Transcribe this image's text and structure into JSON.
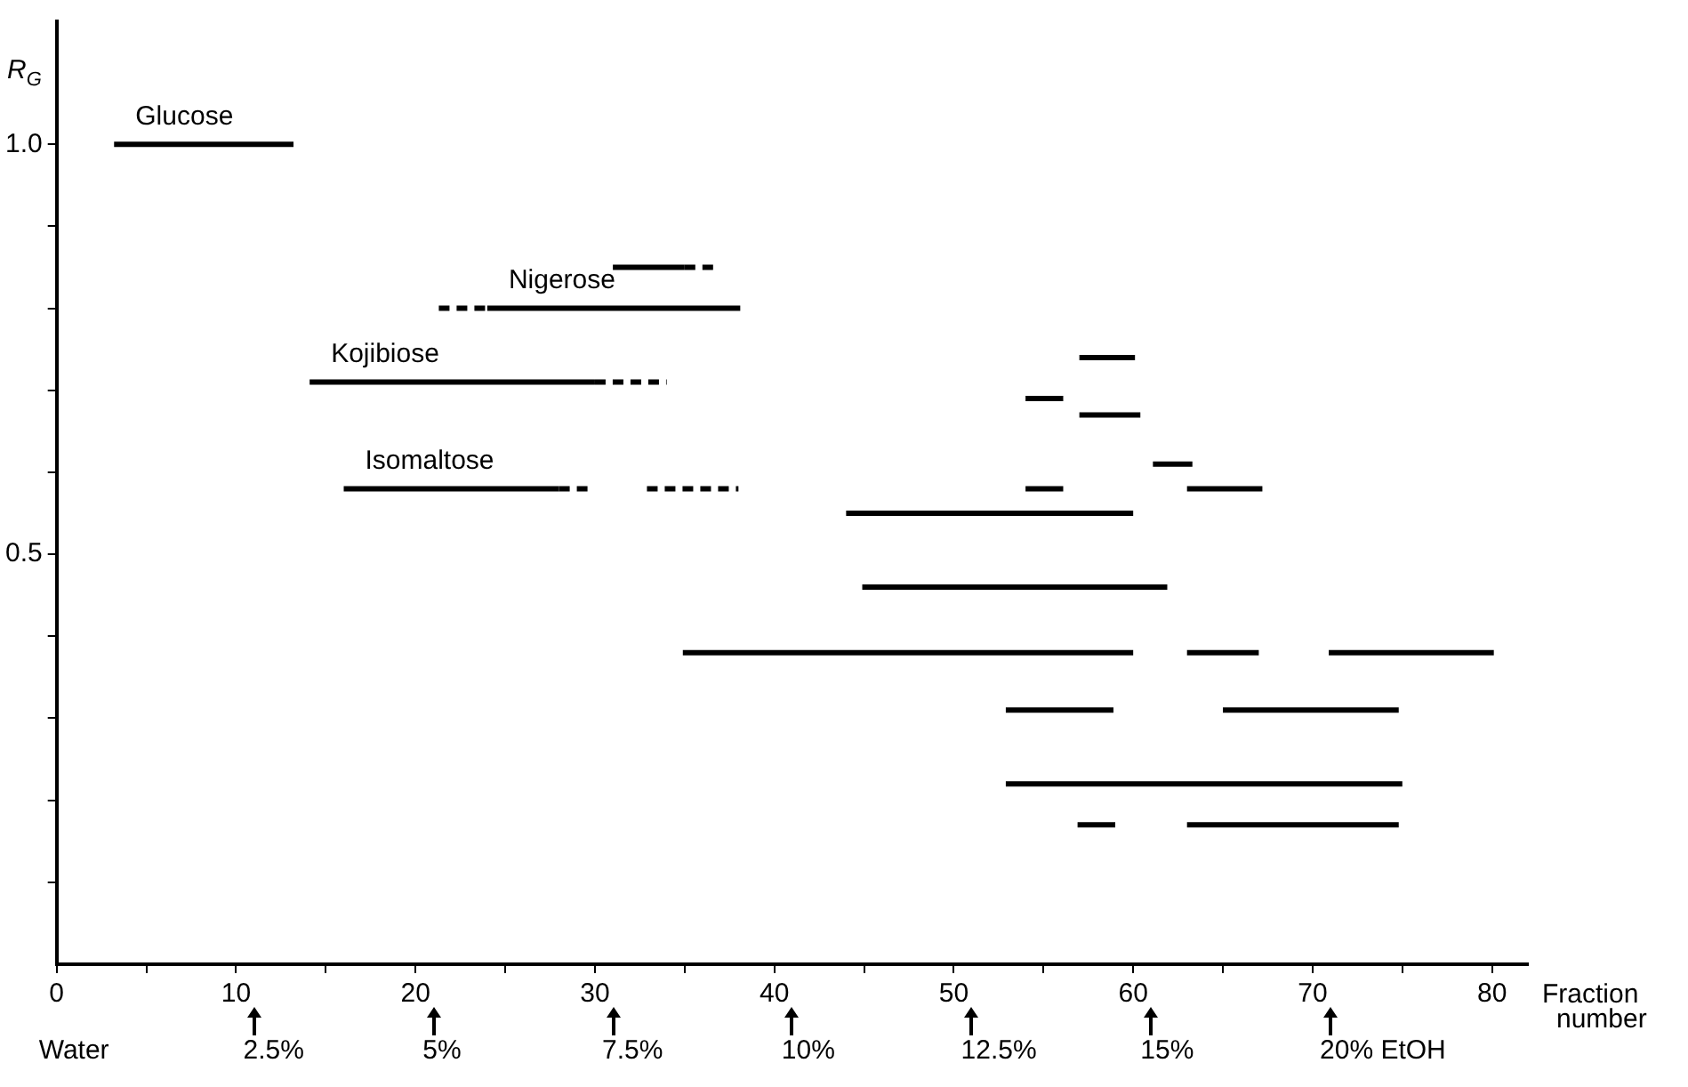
{
  "chart_data": {
    "type": "line",
    "xlabel": "Fraction number",
    "ylabel": "R$_{G}$",
    "xlim": [
      0,
      82
    ],
    "ylim": [
      0,
      1.15
    ],
    "xticks": [
      0,
      {
        "value": 5,
        "label": null
      },
      10,
      {
        "value": 15,
        "label": null
      },
      20,
      {
        "value": 25,
        "label": null
      },
      30,
      {
        "value": 35,
        "label": null
      },
      40,
      {
        "value": 45,
        "label": null
      },
      50,
      {
        "value": 55,
        "label": null
      },
      60,
      {
        "value": 65,
        "label": null
      },
      70,
      {
        "value": 75,
        "label": null
      },
      80
    ],
    "yticks": [
      {
        "value": 0.1,
        "label": null
      },
      {
        "value": 0.2,
        "label": null
      },
      {
        "value": 0.3,
        "label": null
      },
      {
        "value": 0.4,
        "label": null
      },
      {
        "value": 0.5,
        "label": "0.5"
      },
      {
        "value": 0.6,
        "label": null
      },
      {
        "value": 0.7,
        "label": null
      },
      {
        "value": 0.8,
        "label": null
      },
      {
        "value": 0.9,
        "label": null
      },
      {
        "value": 1.0,
        "label": "1.0"
      }
    ],
    "grid": false,
    "legend": false,
    "marker": "none",
    "series": [
      {
        "name": "Glucose",
        "color": "#000000",
        "x": [
          3.2,
          13.2
        ],
        "values": [
          1.0,
          1.0
        ],
        "line_style": "solid"
      },
      {
        "color": "#000000",
        "x": [
          31,
          35
        ],
        "values": [
          0.85,
          0.85
        ],
        "line_style": "solid"
      },
      {
        "color": "#000000",
        "x": [
          35,
          36.7
        ],
        "values": [
          0.85,
          0.85
        ],
        "line_style": "dashed"
      },
      {
        "color": "#000000",
        "x": [
          21.3,
          24
        ],
        "values": [
          0.8,
          0.8
        ],
        "line_style": "dashed"
      },
      {
        "name": "Nigerose",
        "color": "#000000",
        "x": [
          24,
          38.1
        ],
        "values": [
          0.8,
          0.8
        ],
        "line_style": "solid"
      },
      {
        "name": "Kojibiose",
        "color": "#000000",
        "x": [
          14.1,
          30
        ],
        "values": [
          0.71,
          0.71
        ],
        "line_style": "solid"
      },
      {
        "color": "#000000",
        "x": [
          30,
          34
        ],
        "values": [
          0.71,
          0.71
        ],
        "line_style": "dashed"
      },
      {
        "name": "Isomaltose",
        "color": "#000000",
        "x": [
          16,
          28
        ],
        "values": [
          0.58,
          0.58
        ],
        "line_style": "solid"
      },
      {
        "color": "#000000",
        "x": [
          28,
          29.9
        ],
        "values": [
          0.58,
          0.58
        ],
        "line_style": "dashed"
      },
      {
        "color": "#000000",
        "x": [
          32.9,
          38
        ],
        "values": [
          0.58,
          0.58
        ],
        "line_style": "dashed"
      },
      {
        "color": "#000000",
        "x": [
          57,
          60.1
        ],
        "values": [
          0.74,
          0.74
        ],
        "line_style": "solid"
      },
      {
        "color": "#000000",
        "x": [
          54,
          56.1
        ],
        "values": [
          0.69,
          0.69
        ],
        "line_style": "solid"
      },
      {
        "color": "#000000",
        "x": [
          57,
          60.4
        ],
        "values": [
          0.67,
          0.67
        ],
        "line_style": "solid"
      },
      {
        "color": "#000000",
        "x": [
          61.1,
          63.3
        ],
        "values": [
          0.61,
          0.61
        ],
        "line_style": "solid"
      },
      {
        "color": "#000000",
        "x": [
          54,
          56.1
        ],
        "values": [
          0.58,
          0.58
        ],
        "line_style": "solid"
      },
      {
        "color": "#000000",
        "x": [
          63,
          67.2
        ],
        "values": [
          0.58,
          0.58
        ],
        "line_style": "solid"
      },
      {
        "color": "#000000",
        "x": [
          44,
          60
        ],
        "values": [
          0.55,
          0.55
        ],
        "line_style": "solid"
      },
      {
        "color": "#000000",
        "x": [
          44.9,
          61.9
        ],
        "values": [
          0.46,
          0.46
        ],
        "line_style": "solid"
      },
      {
        "color": "#000000",
        "x": [
          34.9,
          60
        ],
        "values": [
          0.38,
          0.38
        ],
        "line_style": "solid"
      },
      {
        "color": "#000000",
        "x": [
          63,
          67
        ],
        "values": [
          0.38,
          0.38
        ],
        "line_style": "solid"
      },
      {
        "color": "#000000",
        "x": [
          70.9,
          80.1
        ],
        "values": [
          0.38,
          0.38
        ],
        "line_style": "solid"
      },
      {
        "color": "#000000",
        "x": [
          52.9,
          58.9
        ],
        "values": [
          0.31,
          0.31
        ],
        "line_style": "solid"
      },
      {
        "color": "#000000",
        "x": [
          65,
          74.8
        ],
        "values": [
          0.31,
          0.31
        ],
        "line_style": "solid"
      },
      {
        "color": "#000000",
        "x": [
          52.9,
          75
        ],
        "values": [
          0.22,
          0.22
        ],
        "line_style": "solid"
      },
      {
        "color": "#000000",
        "x": [
          56.9,
          59
        ],
        "values": [
          0.17,
          0.17
        ],
        "line_style": "solid"
      },
      {
        "color": "#000000",
        "x": [
          63,
          74.8
        ],
        "values": [
          0.17,
          0.17
        ],
        "line_style": "solid"
      }
    ],
    "annotations": [
      "Water",
      "2.5%",
      "5%",
      "7.5%",
      "10%",
      "12.5%",
      "15%",
      "20% EtOH"
    ]
  }
}
